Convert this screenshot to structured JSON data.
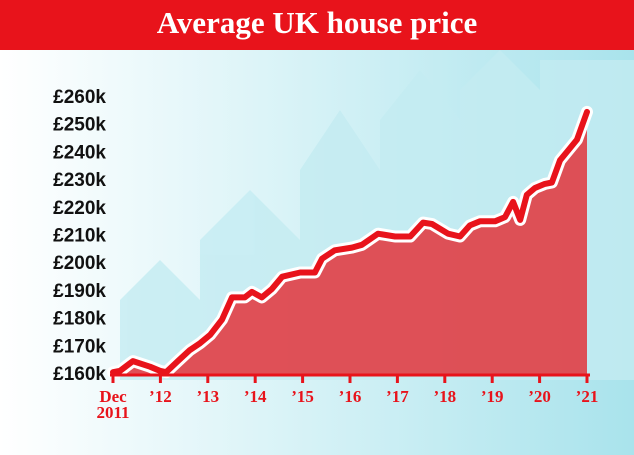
{
  "chart_data": {
    "type": "area",
    "title": "Average UK house price",
    "x": [
      2011.0,
      2011.15,
      2011.42,
      2011.78,
      2011.99,
      2012.12,
      2012.37,
      2012.62,
      2012.84,
      2013.05,
      2013.3,
      2013.51,
      2013.78,
      2013.93,
      2014.14,
      2014.35,
      2014.57,
      2014.95,
      2015.26,
      2015.41,
      2015.68,
      2016.04,
      2016.25,
      2016.59,
      2016.95,
      2017.27,
      2017.54,
      2017.73,
      2018.07,
      2018.32,
      2018.53,
      2018.74,
      2019.06,
      2019.27,
      2019.44,
      2019.59,
      2019.73,
      2019.9,
      2020.11,
      2020.26,
      2020.43,
      2020.6,
      2020.79,
      2021.0
    ],
    "series": [
      {
        "name": "Average UK house price",
        "color": "#e8131b",
        "values": [
          161,
          161.5,
          165,
          163,
          161.5,
          161,
          165,
          169,
          171.5,
          174.5,
          180,
          188,
          188,
          190,
          188,
          191,
          195.5,
          197,
          197,
          202,
          205,
          206,
          207,
          211,
          210,
          210,
          215,
          214.5,
          211,
          210,
          214,
          215.5,
          215.5,
          217,
          222.5,
          216,
          225,
          227.5,
          229,
          229.5,
          237.5,
          241,
          245,
          255
        ]
      }
    ],
    "xlim": [
      2011,
      2021
    ],
    "xticks": [
      {
        "value": 2011,
        "label": "Dec\n2011"
      },
      {
        "value": 2012,
        "label": "’12"
      },
      {
        "value": 2013,
        "label": "’13"
      },
      {
        "value": 2014,
        "label": "’14"
      },
      {
        "value": 2015,
        "label": "’15"
      },
      {
        "value": 2016,
        "label": "’16"
      },
      {
        "value": 2017,
        "label": "’17"
      },
      {
        "value": 2018,
        "label": "’18"
      },
      {
        "value": 2019,
        "label": "’19"
      },
      {
        "value": 2020,
        "label": "’20"
      },
      {
        "value": 2021,
        "label": "’21"
      }
    ],
    "ylim": [
      160,
      260
    ],
    "yticks": [
      {
        "value": 160,
        "label": "£160k"
      },
      {
        "value": 170,
        "label": "£170k"
      },
      {
        "value": 180,
        "label": "£180k"
      },
      {
        "value": 190,
        "label": "£190k"
      },
      {
        "value": 200,
        "label": "£200k"
      },
      {
        "value": 210,
        "label": "£210k"
      },
      {
        "value": 220,
        "label": "£220k"
      },
      {
        "value": 230,
        "label": "£230k"
      },
      {
        "value": 240,
        "label": "£240k"
      },
      {
        "value": 250,
        "label": "£250k"
      },
      {
        "value": 260,
        "label": "£260k"
      }
    ]
  }
}
